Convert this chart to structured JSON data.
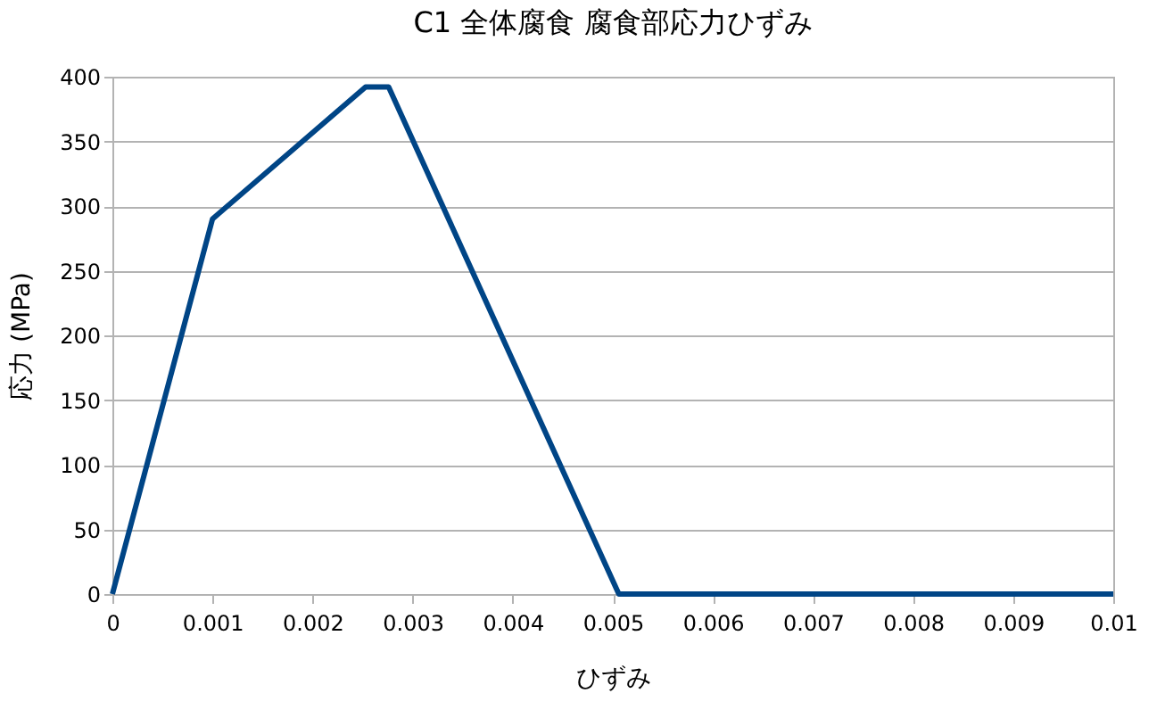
{
  "chart_data": {
    "type": "line",
    "title": "C1  全体腐食 腐食部応力ひずみ",
    "xlabel": "ひずみ",
    "ylabel": "応力 (MPa)",
    "x": [
      0,
      0.001,
      0.00253,
      0.00276,
      0.00506,
      0.01
    ],
    "series": [
      {
        "color": "#004586",
        "values": [
          0,
          290,
          392,
          392,
          0,
          0
        ]
      }
    ],
    "xlim": [
      0,
      0.01
    ],
    "xticks": [
      0,
      0.001,
      0.002,
      0.003,
      0.004,
      0.005,
      0.006,
      0.007,
      0.008,
      0.009,
      0.01
    ],
    "ylim": [
      0,
      400
    ],
    "yticks": [
      0,
      50,
      100,
      150,
      200,
      250,
      300,
      350,
      400
    ],
    "grid": "y",
    "marker": "none",
    "line_style": "solid"
  }
}
